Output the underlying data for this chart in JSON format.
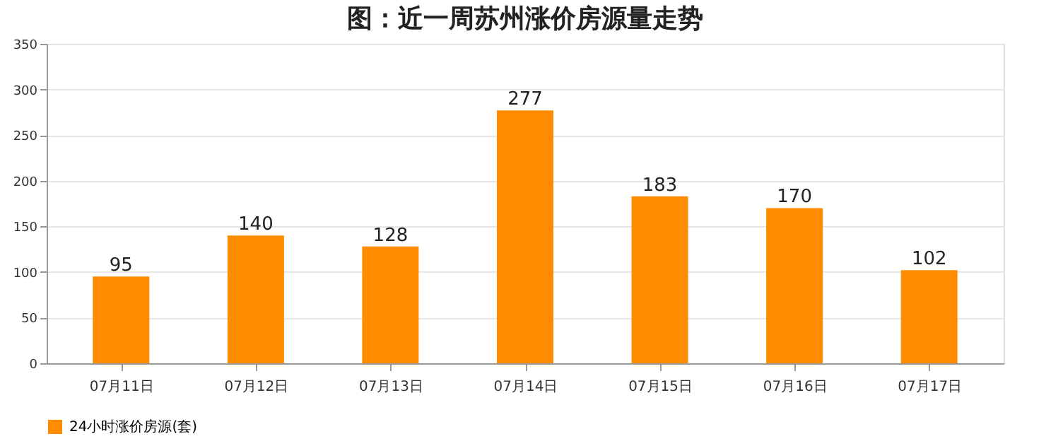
{
  "chart_data": {
    "type": "bar",
    "title": "图：近一周苏州涨价房源量走势",
    "categories": [
      "07月11日",
      "07月12日",
      "07月13日",
      "07月14日",
      "07月15日",
      "07月16日",
      "07月17日"
    ],
    "series": [
      {
        "name": "24小时涨价房源(套)",
        "color": "#ff8c00",
        "values": [
          95,
          140,
          128,
          277,
          183,
          170,
          102
        ]
      }
    ],
    "ylim": [
      0,
      350
    ],
    "yticks": [
      0,
      50,
      100,
      150,
      200,
      250,
      300,
      350
    ],
    "grid": "y",
    "legend": "bottom",
    "data_labels": true
  }
}
